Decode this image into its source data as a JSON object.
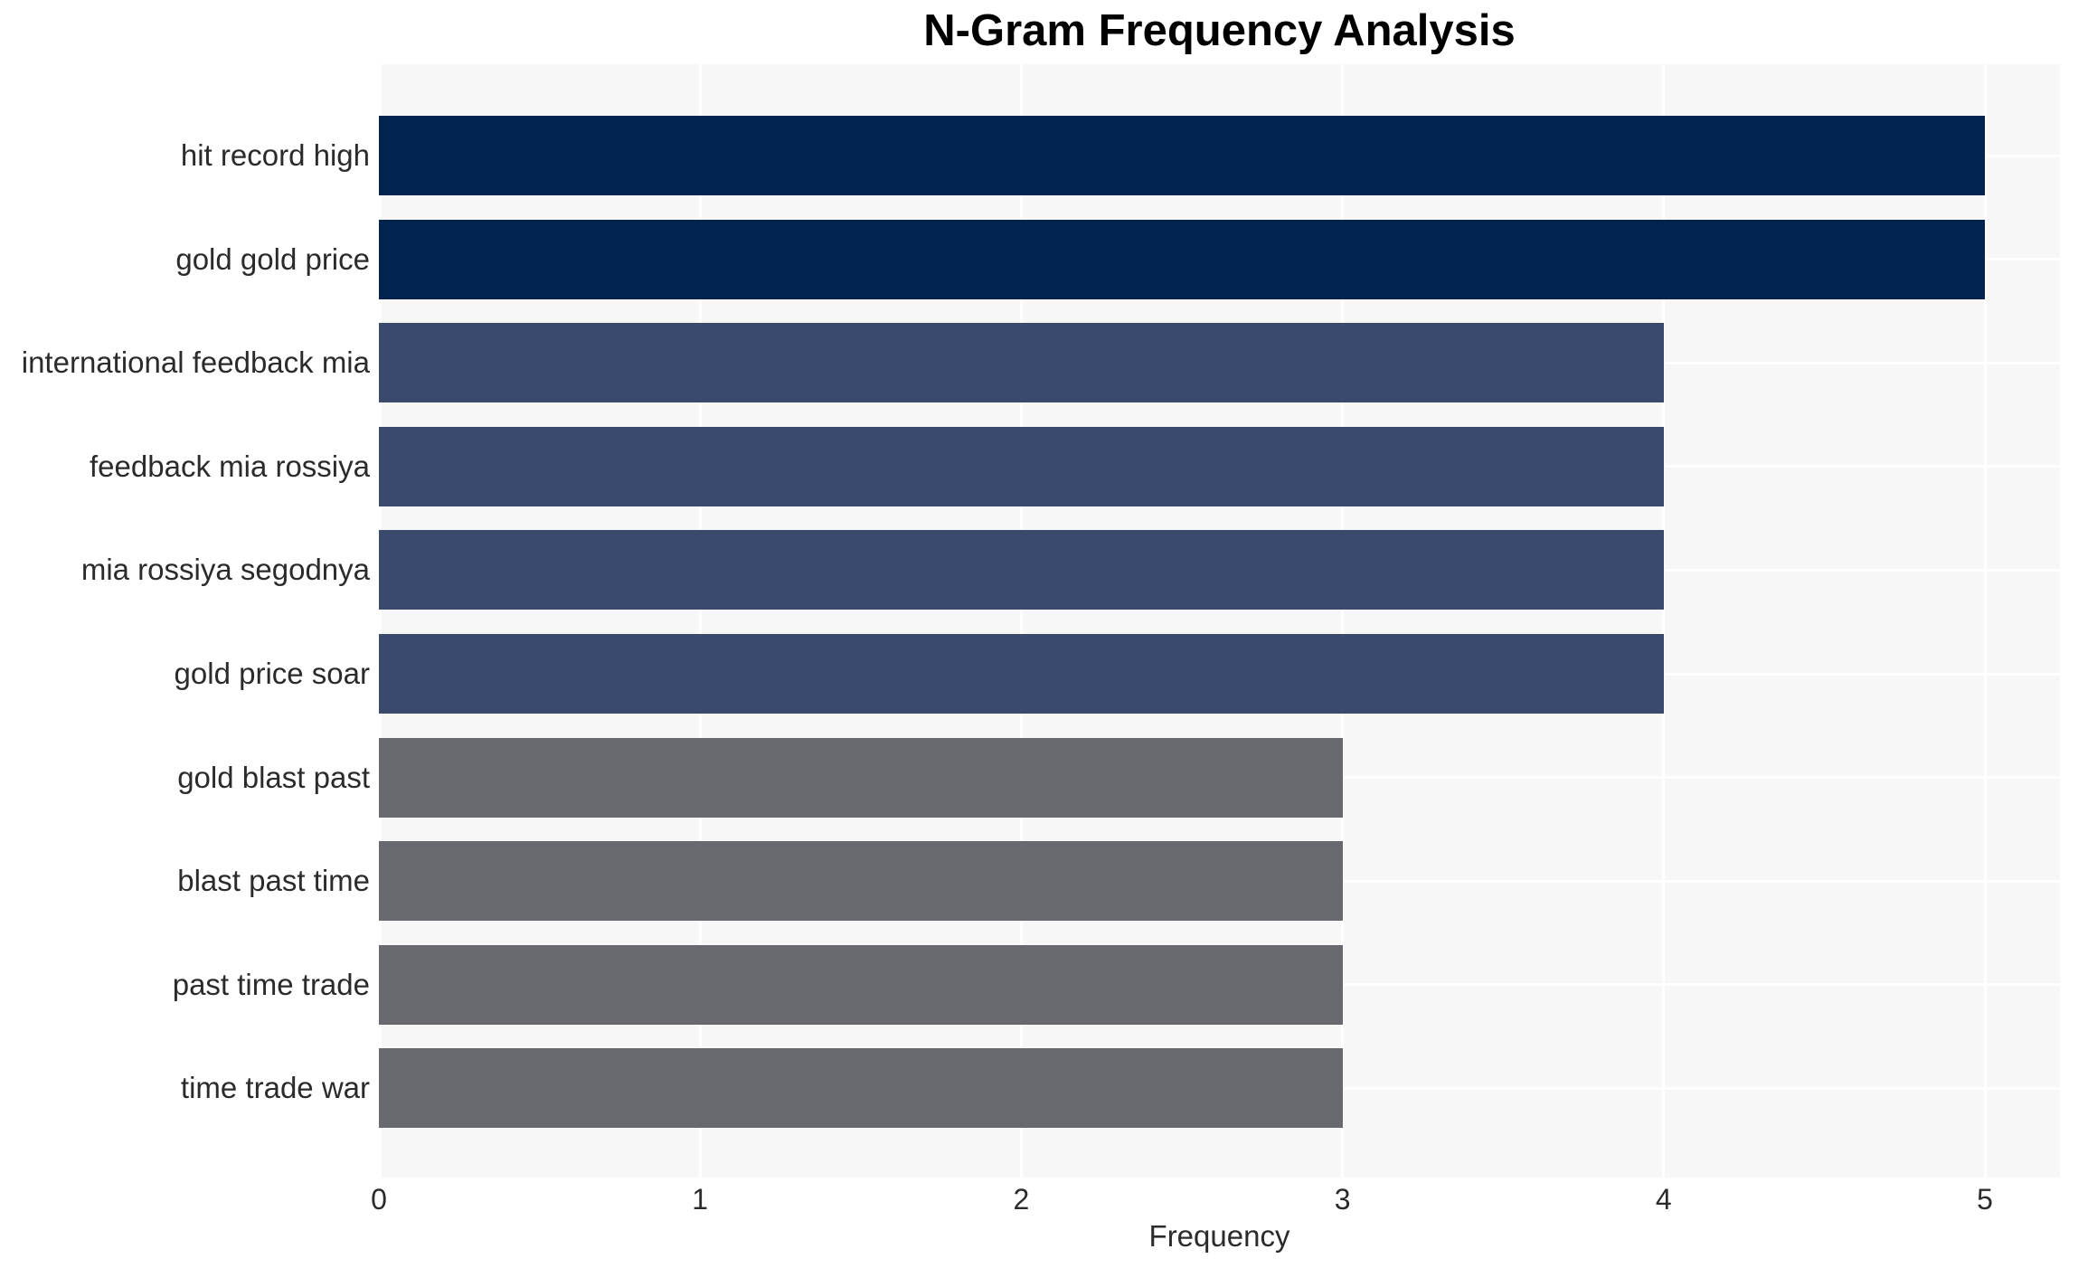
{
  "chart_data": {
    "type": "bar",
    "orientation": "horizontal",
    "title": "N-Gram Frequency Analysis",
    "xlabel": "Frequency",
    "ylabel": "",
    "categories": [
      "hit record high",
      "gold gold price",
      "international feedback mia",
      "feedback mia rossiya",
      "mia rossiya segodnya",
      "gold price soar",
      "gold blast past",
      "blast past time",
      "past time trade",
      "time trade war"
    ],
    "values": [
      5,
      5,
      4,
      4,
      4,
      4,
      3,
      3,
      3,
      3
    ],
    "x_ticks": [
      "0",
      "1",
      "2",
      "3",
      "4",
      "5"
    ],
    "xlim": [
      0,
      5.23
    ],
    "grid": true,
    "legend": false,
    "value_colors": {
      "5": "#02234e",
      "4": "#3a4a6c",
      "3": "#67696f"
    },
    "plot_background": "#f7f7f8",
    "grid_color": "#ffffff",
    "text_color": "#2b2b2b",
    "title_color": "#000000"
  }
}
